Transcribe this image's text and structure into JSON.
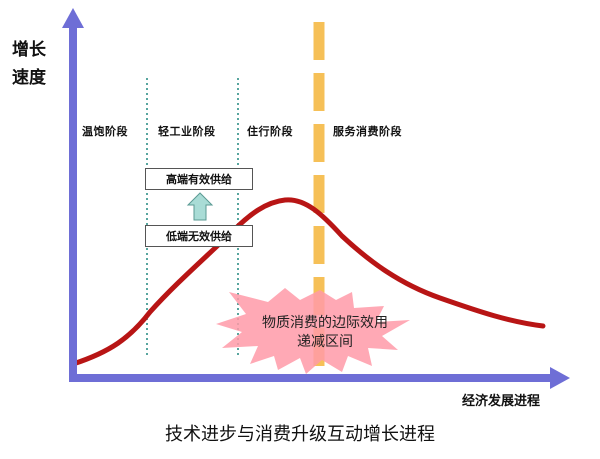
{
  "axes": {
    "y_label_line1": "增长",
    "y_label_line2": "速度",
    "x_label": "经济发展进程"
  },
  "stages": [
    "温饱阶段",
    "轻工业阶段",
    "住行阶段",
    "服务消费阶段"
  ],
  "boxes": {
    "upper": "高端有效供给",
    "lower": "低端无效供给"
  },
  "burst": {
    "line1": "物质消费的边际效用",
    "line2": "递减区间"
  },
  "caption": "技术进步与消费升级互动增长进程",
  "colors": {
    "axis": "#6e6ed6",
    "curve": "#b81515",
    "divider": "#f5b53a",
    "stage_divider": "#2f8f87",
    "burst": "#ff9aa8",
    "arrow": "#a9dcd6"
  }
}
